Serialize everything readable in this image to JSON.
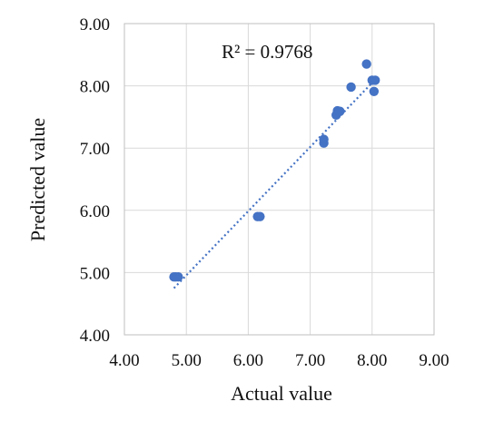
{
  "chart_data": {
    "type": "scatter",
    "xlabel": "Actual value",
    "ylabel": "Predicted value",
    "xlim": [
      4.0,
      9.0
    ],
    "ylim": [
      4.0,
      9.0
    ],
    "x_ticks": [
      "4.00",
      "5.00",
      "6.00",
      "7.00",
      "8.00",
      "9.00"
    ],
    "y_ticks": [
      "4.00",
      "5.00",
      "6.00",
      "7.00",
      "8.00",
      "9.00"
    ],
    "grid": "on",
    "annotation": "R² = 0.9768",
    "trendline": {
      "style": "dotted",
      "x_start": 4.8,
      "y_start": 4.75,
      "x_end": 8.05,
      "y_end": 8.1
    },
    "colors": {
      "points": "#4472c4",
      "trendline": "#4472c4",
      "grid": "#d9d9d9"
    },
    "series": [
      {
        "points": [
          {
            "x": 4.8,
            "y": 4.93
          },
          {
            "x": 4.83,
            "y": 4.93
          },
          {
            "x": 4.87,
            "y": 4.93
          },
          {
            "x": 6.15,
            "y": 5.9
          },
          {
            "x": 6.19,
            "y": 5.9
          },
          {
            "x": 7.22,
            "y": 7.08
          },
          {
            "x": 7.22,
            "y": 7.14
          },
          {
            "x": 7.42,
            "y": 7.53
          },
          {
            "x": 7.44,
            "y": 7.6
          },
          {
            "x": 7.48,
            "y": 7.59
          },
          {
            "x": 7.66,
            "y": 7.98
          },
          {
            "x": 7.91,
            "y": 8.35
          },
          {
            "x": 8.0,
            "y": 8.09
          },
          {
            "x": 8.05,
            "y": 8.09
          },
          {
            "x": 8.03,
            "y": 7.91
          }
        ]
      }
    ]
  }
}
